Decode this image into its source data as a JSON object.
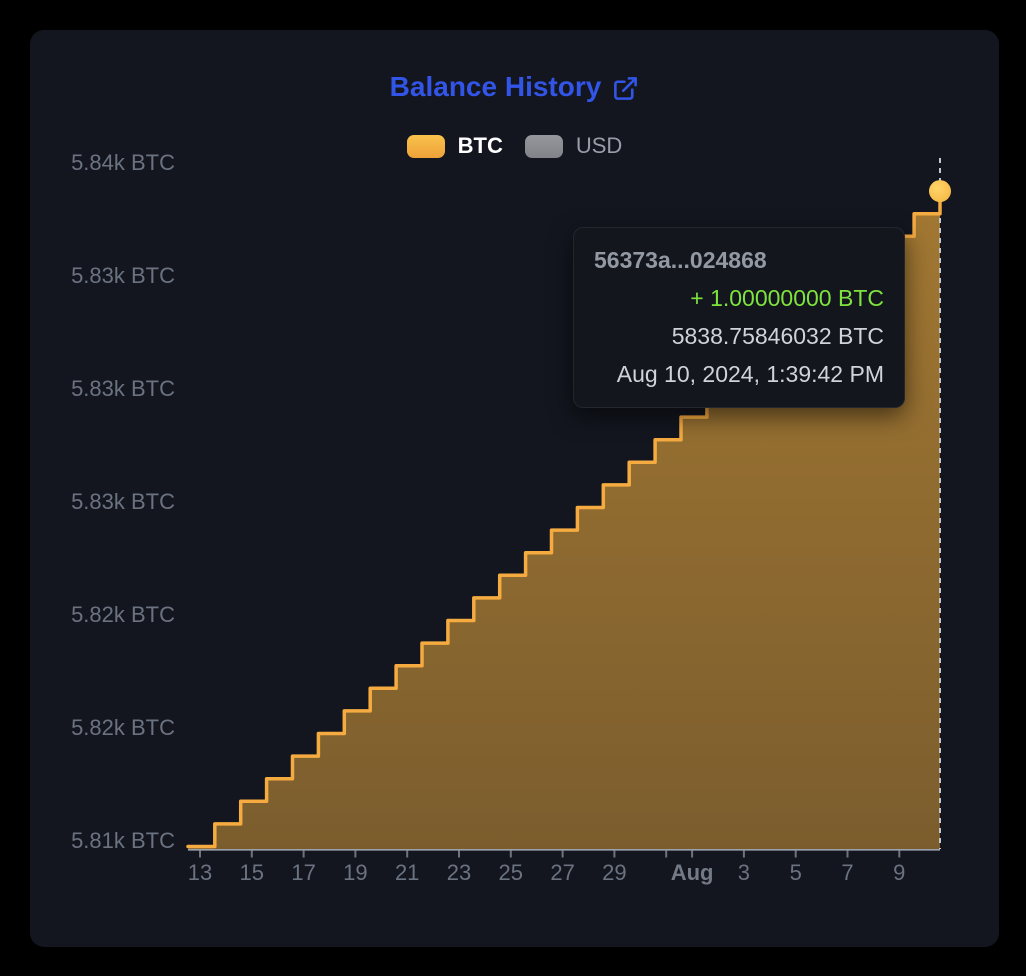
{
  "header": {
    "title": "Balance History"
  },
  "legend": {
    "items": [
      {
        "label": "BTC",
        "active": true,
        "color": "#f5ab40"
      },
      {
        "label": "USD",
        "active": false,
        "color": "#8a8d94"
      }
    ]
  },
  "tooltip": {
    "txid": "56373a...024868",
    "amount_change": "+ 1.00000000 BTC",
    "balance": "5838.75846032 BTC",
    "datetime": "Aug 10, 2024, 1:39:42 PM"
  },
  "chart_data": {
    "type": "area",
    "step": true,
    "title": "Balance History",
    "unit": "BTC",
    "legend_position": "top",
    "grid": false,
    "y_ticks": [
      {
        "label": "5.84k BTC",
        "value": 5840
      },
      {
        "label": "5.83k BTC",
        "value": 5835
      },
      {
        "label": "5.83k BTC",
        "value": 5830
      },
      {
        "label": "5.83k BTC",
        "value": 5825
      },
      {
        "label": "5.82k BTC",
        "value": 5820
      },
      {
        "label": "5.82k BTC",
        "value": 5815
      },
      {
        "label": "5.81k BTC",
        "value": 5810
      }
    ],
    "x_ticks": [
      {
        "label": "13",
        "day": 0
      },
      {
        "label": "15",
        "day": 2
      },
      {
        "label": "17",
        "day": 4
      },
      {
        "label": "19",
        "day": 6
      },
      {
        "label": "21",
        "day": 8
      },
      {
        "label": "23",
        "day": 10
      },
      {
        "label": "25",
        "day": 12
      },
      {
        "label": "27",
        "day": 14
      },
      {
        "label": "29",
        "day": 16
      },
      {
        "label": "",
        "day": 18
      },
      {
        "label": "Aug",
        "day": 19,
        "bold": true
      },
      {
        "label": "3",
        "day": 21
      },
      {
        "label": "5",
        "day": 23
      },
      {
        "label": "7",
        "day": 25
      },
      {
        "label": "9",
        "day": 27
      }
    ],
    "series": [
      {
        "name": "BTC",
        "visible": true,
        "amount_per_step_btc": 1.0,
        "balances": [
          5809.75846032,
          5810.75846032,
          5811.75846032,
          5812.75846032,
          5813.75846032,
          5814.75846032,
          5815.75846032,
          5816.75846032,
          5817.75846032,
          5818.75846032,
          5819.75846032,
          5820.75846032,
          5821.75846032,
          5822.75846032,
          5823.75846032,
          5824.75846032,
          5825.75846032,
          5826.75846032,
          5827.75846032,
          5828.75846032,
          5829.75846032,
          5830.75846032,
          5831.75846032,
          5832.75846032,
          5833.75846032,
          5834.75846032,
          5835.75846032,
          5836.75846032,
          5837.75846032,
          5838.75846032
        ]
      },
      {
        "name": "USD",
        "visible": false
      }
    ],
    "hover_point": {
      "balance_btc": 5838.75846032,
      "datetime": "Aug 10, 2024, 1:39:42 PM"
    },
    "colors": {
      "line": "#f5ab40",
      "fill_top": "rgba(246,177,62,0.63)",
      "fill_bottom": "rgba(246,177,62,0.46)",
      "marker": "#f6b844",
      "guide_line": "#c3c7ce",
      "axis_line": "#9aa1ac",
      "tick": "#6d7380",
      "axis_label": "#6b7280",
      "title_blue": "#3255e8",
      "tooltip_green": "#7ee33d"
    }
  }
}
